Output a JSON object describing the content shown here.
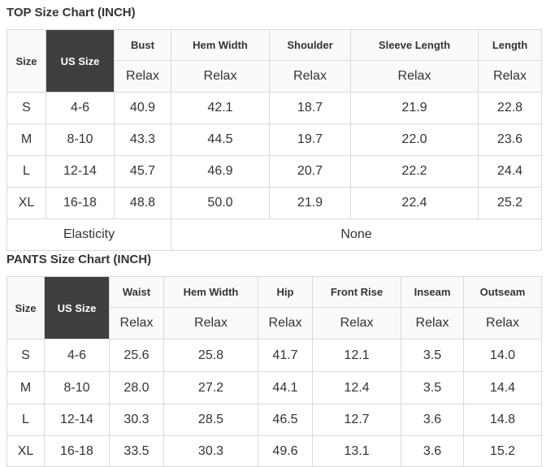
{
  "top_chart": {
    "title": "TOP Size Chart (INCH)",
    "size_header": "Size",
    "us_size_header": "US Size",
    "columns": [
      "Bust",
      "Hem Width",
      "Shoulder",
      "Sleeve Length",
      "Length"
    ],
    "subheader": [
      "Relax",
      "Relax",
      "Relax",
      "Relax",
      "Relax"
    ],
    "rows": [
      [
        "S",
        "4-6",
        "40.9",
        "42.1",
        "18.7",
        "21.9",
        "22.8"
      ],
      [
        "M",
        "8-10",
        "43.3",
        "44.5",
        "19.7",
        "22.0",
        "23.6"
      ],
      [
        "L",
        "12-14",
        "45.7",
        "46.9",
        "20.7",
        "22.2",
        "24.4"
      ],
      [
        "XL",
        "16-18",
        "48.8",
        "50.0",
        "21.9",
        "22.4",
        "25.2"
      ]
    ],
    "elasticity_label": "Elasticity",
    "elasticity_value": "None"
  },
  "pants_chart": {
    "title": "PANTS Size Chart (INCH)",
    "size_header": "Size",
    "us_size_header": "US Size",
    "columns": [
      "Waist",
      "Hem Width",
      "Hip",
      "Front Rise",
      "Inseam",
      "Outseam"
    ],
    "subheader": [
      "Relax",
      "Relax",
      "Relax",
      "Relax",
      "Relax",
      "Relax"
    ],
    "rows": [
      [
        "S",
        "4-6",
        "25.6",
        "25.8",
        "41.7",
        "12.1",
        "3.5",
        "14.0"
      ],
      [
        "M",
        "8-10",
        "28.0",
        "27.2",
        "44.1",
        "12.4",
        "3.5",
        "14.4"
      ],
      [
        "L",
        "12-14",
        "30.3",
        "28.5",
        "46.5",
        "12.7",
        "3.6",
        "14.8"
      ],
      [
        "XL",
        "16-18",
        "33.5",
        "30.3",
        "49.6",
        "13.1",
        "3.6",
        "15.2"
      ]
    ]
  }
}
